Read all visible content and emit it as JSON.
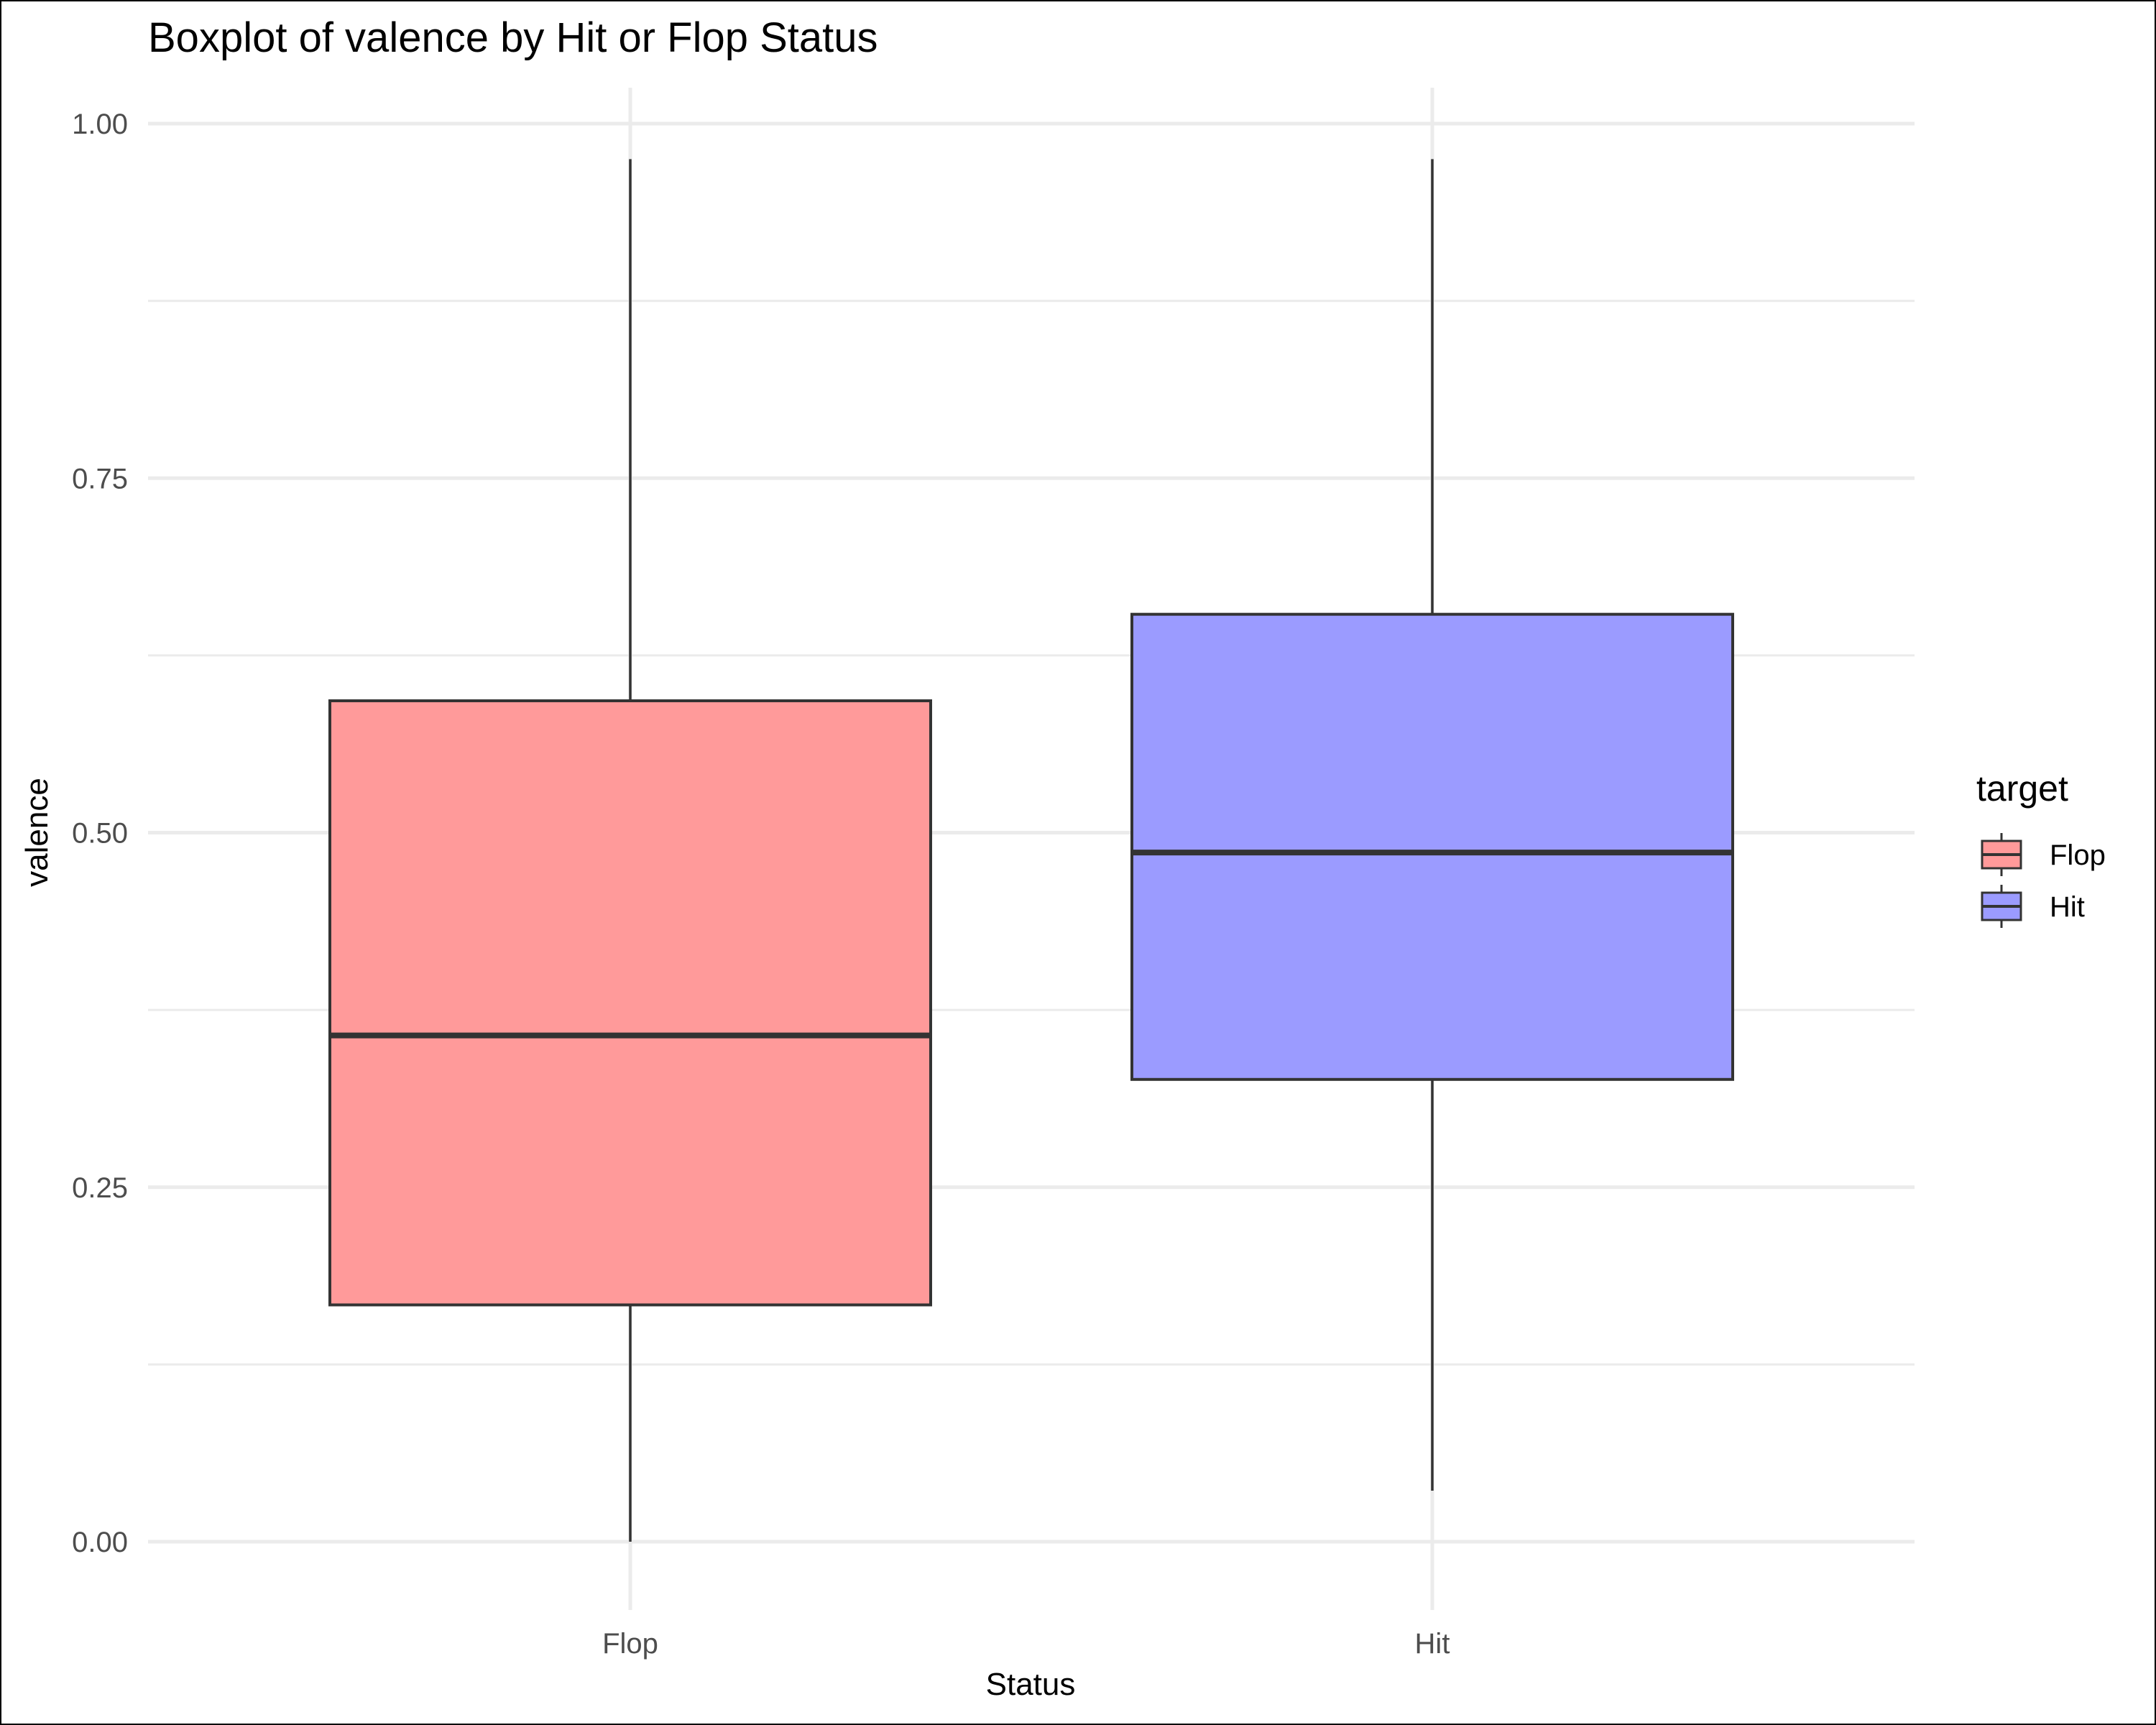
{
  "chart_data": {
    "type": "boxplot",
    "title": "Boxplot of valence by Hit or Flop Status",
    "xlabel": "Status",
    "ylabel": "valence",
    "categories": [
      "Flop",
      "Hit"
    ],
    "ylim": [
      0.0,
      1.0
    ],
    "yticks": [
      "0.00",
      "0.25",
      "0.50",
      "0.75",
      "1.00"
    ],
    "grid": true,
    "legend": {
      "title": "target",
      "position": "right",
      "items": [
        {
          "label": "Flop",
          "color": "#ff9a9a"
        },
        {
          "label": "Hit",
          "color": "#9b9bff"
        }
      ]
    },
    "series": [
      {
        "category": "Flop",
        "min": 0.0,
        "q1": 0.167,
        "median": 0.357,
        "q3": 0.593,
        "max": 0.975,
        "color": "#ff9a9a"
      },
      {
        "category": "Hit",
        "min": 0.036,
        "q1": 0.326,
        "median": 0.486,
        "q3": 0.654,
        "max": 0.975,
        "color": "#9b9bff"
      }
    ]
  }
}
